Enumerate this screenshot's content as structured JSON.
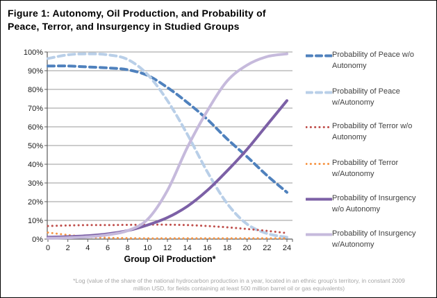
{
  "figure": {
    "title_line1": "Figure 1: Autonomy, Oil Production, and Probability of",
    "title_line2": "Peace, Terror, and Insurgency in Studied Groups",
    "footnote_line1": "*Log (value of the share of the national hydrocarbon production in a year, located in an ethnic group's territory, in constant 2009",
    "footnote_line2": "million USD, for fields containing at least 500 million barrel oil or gas equivalents)"
  },
  "chart_data": {
    "type": "line",
    "title": "Figure 1: Autonomy, Oil Production, and Probability of Peace, Terror, and Insurgency in Studied Groups",
    "xlabel": "Group Oil Production*",
    "ylabel": "",
    "x": [
      0,
      2,
      4,
      6,
      8,
      10,
      12,
      14,
      16,
      18,
      20,
      22,
      24
    ],
    "xlim": [
      0,
      24
    ],
    "ylim": [
      0,
      100
    ],
    "yticks": [
      0,
      10,
      20,
      30,
      40,
      50,
      60,
      70,
      80,
      90,
      100
    ],
    "ytick_suffix": "%",
    "grid": "horizontal",
    "legend_position": "right",
    "colors": {
      "grid": "#999999",
      "axis": "#595959",
      "tick_label": "#1a1a1a"
    },
    "series": [
      {
        "name": "Probability of Peace w/o Autonomy",
        "legend_lines": [
          "Probability of Peace w/o",
          "Autonomy"
        ],
        "color": "#4F81BD",
        "style": "dashed",
        "width": 4,
        "values": [
          92.5,
          92.5,
          92,
          91.5,
          90.5,
          87.5,
          81,
          73,
          64,
          53.5,
          44,
          34,
          25
        ]
      },
      {
        "name": "Probability of Peace w/Autonomy",
        "legend_lines": [
          "Probability of Peace",
          "w/Autonomy"
        ],
        "color": "#B9CFE8",
        "style": "dashed",
        "width": 4,
        "values": [
          96.5,
          98.5,
          99,
          98.5,
          96,
          88,
          74,
          56,
          36,
          19,
          8,
          3,
          1
        ]
      },
      {
        "name": "Probability of Terror w/o Autonomy",
        "legend_lines": [
          "Probability of Terror w/o",
          "Autonomy"
        ],
        "color": "#C0504D",
        "style": "dotted",
        "width": 3,
        "values": [
          7,
          7.3,
          7.5,
          7.5,
          7.6,
          7.7,
          7.7,
          7.5,
          7,
          6.3,
          5.4,
          4.4,
          3.2
        ]
      },
      {
        "name": "Probability of Terror w/Autonomy",
        "legend_lines": [
          "Probability of Terror",
          "w/Autonomy"
        ],
        "color": "#F79646",
        "style": "dotted",
        "width": 3,
        "values": [
          3.5,
          2.2,
          1.2,
          0.7,
          0.5,
          0.4,
          0.4,
          0.4,
          0.4,
          0.4,
          0.4,
          0.4,
          0.4
        ]
      },
      {
        "name": "Probability of Insurgency w/o Autonomy",
        "legend_lines": [
          "Probability of Insurgency",
          "w/o Autonomy"
        ],
        "color": "#7C60A6",
        "style": "solid",
        "width": 4,
        "values": [
          1,
          1.3,
          1.8,
          2.8,
          4.5,
          7.5,
          11.5,
          17.5,
          26,
          36.5,
          48,
          61,
          74
        ]
      },
      {
        "name": "Probability of Insurgency w/Autonomy",
        "legend_lines": [
          "Probability of Insurgency",
          "w/Autonomy"
        ],
        "color": "#C6BADC",
        "style": "solid",
        "width": 4,
        "values": [
          0.5,
          0.7,
          1.2,
          2.3,
          4.5,
          10.5,
          26,
          49,
          68.5,
          84.5,
          93,
          97.5,
          99
        ]
      }
    ]
  }
}
